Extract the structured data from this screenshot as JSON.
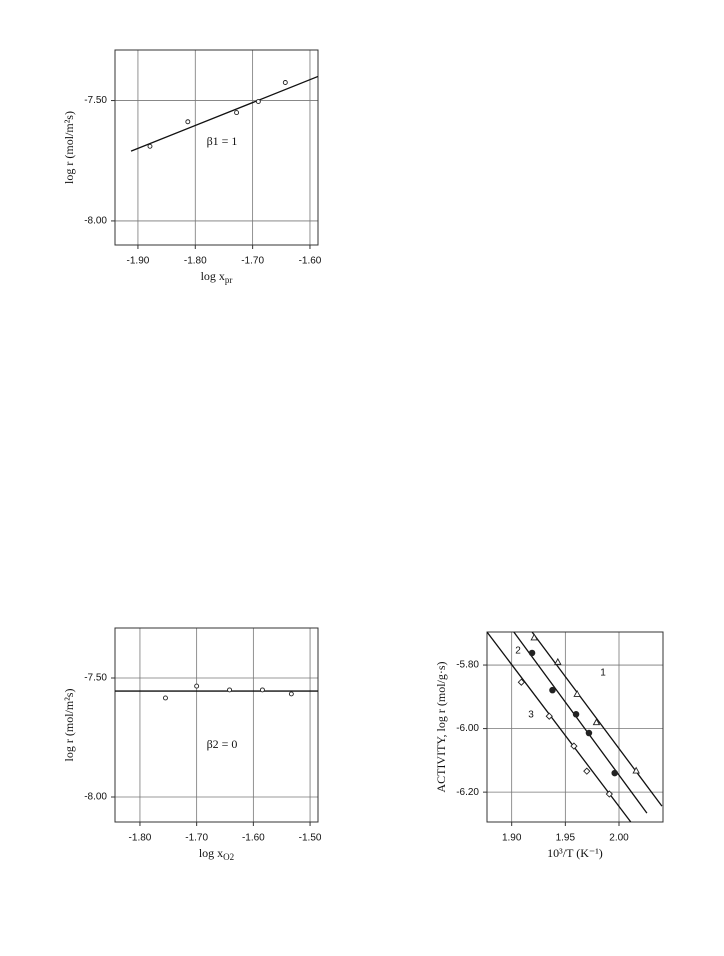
{
  "chart_data": [
    {
      "type": "scatter",
      "xlabel": "log x",
      "xlabel_sub": "pr",
      "ylabel": "log r (mol/m²s)",
      "annotation": "β1 = 1",
      "xlim": [
        -1.94,
        -1.586
      ],
      "ylim": [
        -8.1,
        -7.29
      ],
      "xticks": [
        {
          "value": -1.9,
          "label": "-1.90"
        },
        {
          "value": -1.8,
          "label": "-1.80"
        },
        {
          "value": -1.7,
          "label": "-1.70"
        },
        {
          "value": -1.6,
          "label": "-1.60"
        }
      ],
      "yticks": [
        {
          "value": -7.5,
          "label": "-7.50"
        },
        {
          "value": -8.0,
          "label": "-8.00"
        }
      ],
      "grid": true,
      "series": [
        {
          "marker": "open-circle",
          "color": "#222",
          "x": [
            -1.879,
            -1.813,
            -1.728,
            -1.69,
            -1.643
          ],
          "values": [
            -7.69,
            -7.588,
            -7.55,
            -7.504,
            -7.425
          ],
          "fit_x": [
            -1.912,
            -1.586
          ],
          "fit_values": [
            -7.71,
            -7.4
          ]
        }
      ]
    },
    {
      "type": "scatter",
      "xlabel": "log x",
      "xlabel_sub": "O2",
      "ylabel": "log r (mol/m²s)",
      "annotation": "β2 = 0",
      "xlim": [
        -1.844,
        -1.486
      ],
      "ylim": [
        -8.105,
        -7.29
      ],
      "xticks": [
        {
          "value": -1.8,
          "label": "-1.80"
        },
        {
          "value": -1.7,
          "label": "-1.70"
        },
        {
          "value": -1.6,
          "label": "-1.60"
        },
        {
          "value": -1.5,
          "label": "-1.50"
        }
      ],
      "yticks": [
        {
          "value": -7.5,
          "label": "-7.50"
        },
        {
          "value": -8.0,
          "label": "-8.00"
        }
      ],
      "grid": true,
      "series": [
        {
          "marker": "open-circle",
          "color": "#222",
          "x": [
            -1.755,
            -1.7,
            -1.642,
            -1.584,
            -1.533
          ],
          "values": [
            -7.584,
            -7.534,
            -7.55,
            -7.55,
            -7.567
          ],
          "fit_x": [
            -1.844,
            -1.486
          ],
          "fit_values": [
            -7.555,
            -7.555
          ]
        }
      ]
    },
    {
      "type": "scatter",
      "xlabel": "10³/T (K⁻¹)",
      "ylabel": "ACTIVITY,  log r (mol/g·s)",
      "xlim": [
        1.877,
        2.041
      ],
      "ylim": [
        -6.294,
        -5.696
      ],
      "xticks": [
        {
          "value": 1.9,
          "label": "1.90"
        },
        1.95,
        {
          "value": 2.0,
          "label": "2.00"
        }
      ],
      "yticks": [
        {
          "value": -5.8,
          "label": "-5.80"
        },
        {
          "value": -6.0,
          "label": "-6.00"
        },
        {
          "value": -6.2,
          "label": "-6.20"
        }
      ],
      "grid": true,
      "series": [
        {
          "name": "1",
          "marker": "open-triangle",
          "color": "#222",
          "x": [
            1.921,
            1.943,
            1.961,
            1.979,
            2.016
          ],
          "values": [
            -5.713,
            -5.79,
            -5.891,
            -5.98,
            -6.132
          ],
          "fit_x": [
            1.919,
            2.04
          ],
          "fit_values": [
            -5.696,
            -6.244
          ]
        },
        {
          "name": "2",
          "marker": "filled-circle",
          "color": "#222",
          "x": [
            1.919,
            1.938,
            1.96,
            1.972,
            1.996
          ],
          "values": [
            -5.762,
            -5.879,
            -5.955,
            -6.014,
            -6.14
          ],
          "fit_x": [
            1.902,
            2.026
          ],
          "fit_values": [
            -5.696,
            -6.266
          ]
        },
        {
          "name": "3",
          "marker": "open-diamond",
          "color": "#222",
          "x": [
            1.909,
            1.935,
            1.958,
            1.97,
            1.991
          ],
          "values": [
            -5.854,
            -5.961,
            -6.055,
            -6.134,
            -6.206
          ],
          "fit_x": [
            1.877,
            2.011
          ],
          "fit_values": [
            -5.696,
            -6.294
          ]
        }
      ]
    }
  ]
}
